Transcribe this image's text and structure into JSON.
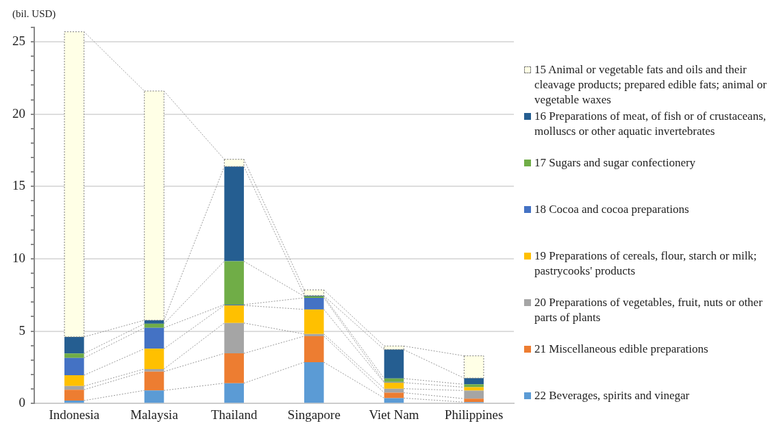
{
  "chart_data": {
    "type": "bar",
    "stacked": true,
    "ylabel": "(bil. USD)",
    "categories": [
      "Indonesia",
      "Malaysia",
      "Thailand",
      "Singapore",
      "Viet Nam",
      "Philippines"
    ],
    "ylim": [
      0,
      26
    ],
    "yticks": [
      0,
      {
        "value": 1,
        "label": null
      },
      {
        "value": 2,
        "label": null
      },
      {
        "value": 3,
        "label": null
      },
      {
        "value": 4,
        "label": null
      },
      5,
      {
        "value": 6,
        "label": null
      },
      {
        "value": 7,
        "label": null
      },
      {
        "value": 8,
        "label": null
      },
      {
        "value": 9,
        "label": null
      },
      10,
      {
        "value": 11,
        "label": null
      },
      {
        "value": 12,
        "label": null
      },
      {
        "value": 13,
        "label": null
      },
      {
        "value": 14,
        "label": null
      },
      15,
      {
        "value": 16,
        "label": null
      },
      {
        "value": 17,
        "label": null
      },
      {
        "value": 18,
        "label": null
      },
      {
        "value": 19,
        "label": null
      },
      20,
      {
        "value": 21,
        "label": null
      },
      {
        "value": 22,
        "label": null
      },
      {
        "value": 23,
        "label": null
      },
      {
        "value": 24,
        "label": null
      },
      25,
      {
        "value": 26,
        "label": null
      }
    ],
    "grid": "y",
    "legend": "right",
    "series": [
      {
        "name": "22 Beverages, spirits and vinegar",
        "color": "#5b9bd5",
        "values": [
          0.2,
          0.9,
          1.4,
          2.85,
          0.37,
          0.09
        ]
      },
      {
        "name": "21 Miscellaneous edible preparations",
        "color": "#ed7d31",
        "values": [
          0.75,
          1.3,
          2.06,
          1.8,
          0.37,
          0.24
        ]
      },
      {
        "name": "20 Preparations of vegetables, fruit, nuts or other parts of plants",
        "color": "#a5a5a5",
        "values": [
          0.25,
          0.18,
          2.1,
          0.15,
          0.28,
          0.56
        ]
      },
      {
        "name": "19 Preparations of cereals, flour, starch or milk; pastrycooks' products",
        "color": "#ffc000",
        "values": [
          0.75,
          1.4,
          1.22,
          1.7,
          0.42,
          0.23
        ]
      },
      {
        "name": "18 Cocoa and cocoa preparations",
        "color": "#4472c4",
        "values": [
          1.2,
          1.45,
          0.05,
          0.8,
          0.05,
          null
        ]
      },
      {
        "name": "17 Sugars and sugar confectionery",
        "color": "#70ad47",
        "values": [
          0.3,
          0.28,
          3.0,
          0.1,
          0.23,
          0.2
        ]
      },
      {
        "name": "16 Preparations of meat, of fish or of crustaceans, molluscs or other aquatic invertebrates",
        "color": "#255e91",
        "values": [
          1.15,
          0.24,
          6.55,
          0.05,
          2.0,
          0.43
        ]
      },
      {
        "name": "15 Animal or vegetable fats and oils and their cleavage products; prepared edible fats; animal or vegetable waxes",
        "color": "#ffffe6",
        "values": [
          21.1,
          15.85,
          0.5,
          0.4,
          0.25,
          1.54
        ]
      }
    ]
  }
}
